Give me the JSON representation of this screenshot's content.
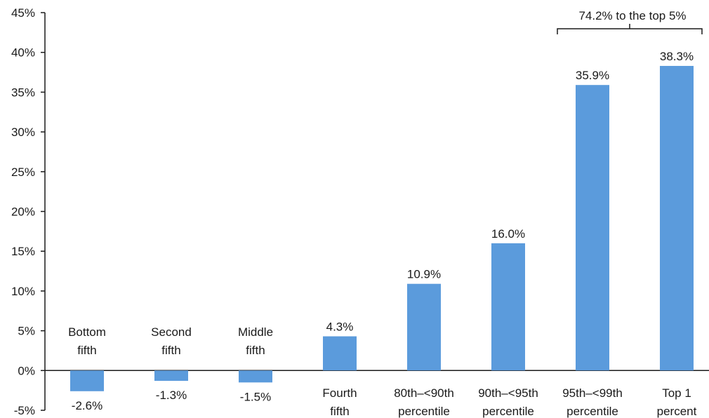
{
  "chart_data": {
    "type": "bar",
    "categories": [
      [
        "Bottom",
        "fifth"
      ],
      [
        "Second",
        "fifth"
      ],
      [
        "Middle",
        "fifth"
      ],
      [
        "Fourth",
        "fifth"
      ],
      [
        "80th–<90th",
        "percentile"
      ],
      [
        "90th–<95th",
        "percentile"
      ],
      [
        "95th–<99th",
        "percentile"
      ],
      [
        "Top 1",
        "percent"
      ]
    ],
    "values": [
      -2.6,
      -1.3,
      -1.5,
      4.3,
      10.9,
      16.0,
      35.9,
      38.3
    ],
    "data_labels": [
      "-2.6%",
      "-1.3%",
      "-1.5%",
      "4.3%",
      "10.9%",
      "16.0%",
      "35.9%",
      "38.3%"
    ],
    "yticks": [
      -5,
      0,
      5,
      10,
      15,
      20,
      25,
      30,
      35,
      40,
      45
    ],
    "ytick_labels": [
      "-5%",
      "0%",
      "5%",
      "10%",
      "15%",
      "20%",
      "25%",
      "30%",
      "35%",
      "40%",
      "45%"
    ],
    "ylim": [
      -5,
      45
    ],
    "bar_color": "#5b9bdc",
    "grid": false,
    "annotation": {
      "text": "74.2% to the top 5%",
      "spans_categories": [
        6,
        7
      ]
    }
  }
}
